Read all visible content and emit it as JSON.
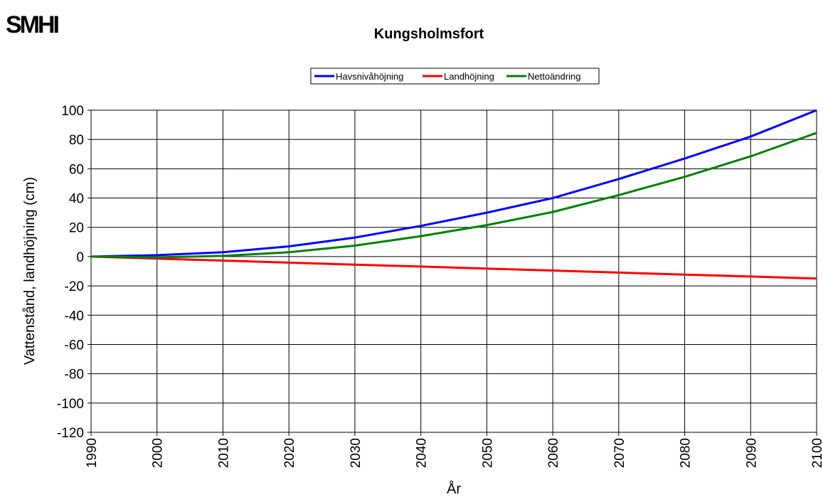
{
  "logo": "SMHI",
  "chart_data": {
    "type": "line",
    "title": "Kungsholmsfort",
    "x_label": "År",
    "y_label": "Vattenstånd, landhöjning (cm)",
    "x": [
      1990,
      2000,
      2010,
      2020,
      2030,
      2040,
      2050,
      2060,
      2070,
      2080,
      2090,
      2100
    ],
    "series": [
      {
        "name": "Havsnivåhöjning",
        "color": "#0000ff",
        "values": [
          0,
          1,
          3,
          7,
          13,
          21,
          30,
          40,
          53,
          67,
          82,
          100
        ]
      },
      {
        "name": "Landhöjning",
        "color": "#ff0000",
        "values": [
          0,
          -1.4,
          -2.7,
          -4.1,
          -5.5,
          -6.8,
          -8.2,
          -9.5,
          -10.9,
          -12.3,
          -13.6,
          -15
        ]
      },
      {
        "name": "Nettoändring",
        "color": "#008000",
        "values": [
          0,
          -0.5,
          0.5,
          3,
          7.5,
          14,
          21.5,
          30.5,
          42,
          54.5,
          68.5,
          84.5
        ]
      }
    ],
    "xlim": [
      1990,
      2100
    ],
    "xticks": [
      1990,
      2000,
      2010,
      2020,
      2030,
      2040,
      2050,
      2060,
      2070,
      2080,
      2090,
      2100
    ],
    "ylim": [
      -120,
      100
    ],
    "yticks": [
      -120,
      -100,
      -80,
      -60,
      -40,
      -20,
      0,
      20,
      40,
      60,
      80,
      100
    ],
    "grid": true,
    "legend": "top"
  }
}
